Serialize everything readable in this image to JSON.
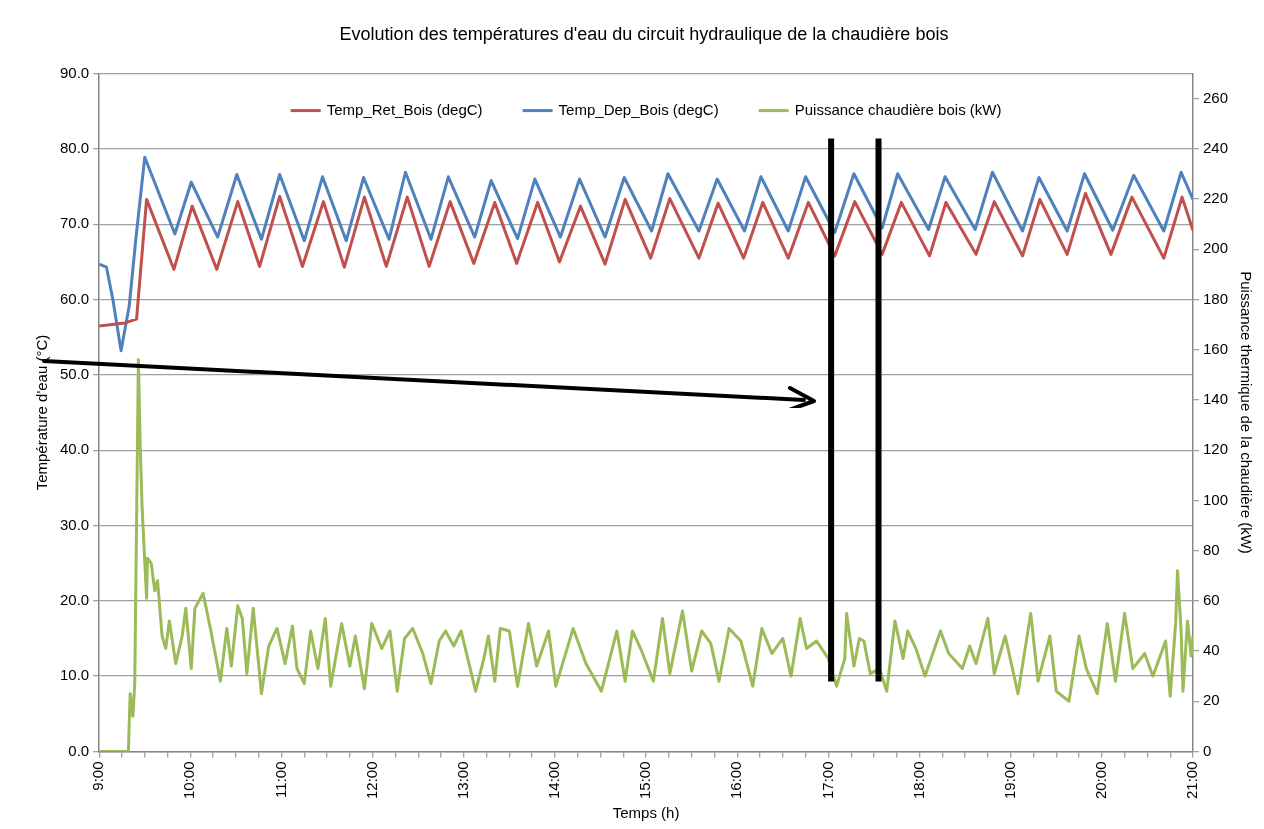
{
  "chart_data": {
    "type": "line",
    "title": "Evolution des températures d'eau du circuit hydraulique de la chaudière bois",
    "xlabel": "Temps (h)",
    "ylabel": "Température d'eau (°C)",
    "y2label": "Puissance thermique de la chaudière (kW)",
    "xlim": [
      9,
      21
    ],
    "xticks": [
      {
        "value": 9,
        "label": "9:00"
      },
      {
        "value": 9.25,
        "label": null
      },
      {
        "value": 9.5,
        "label": null
      },
      {
        "value": 9.75,
        "label": null
      },
      {
        "value": 10,
        "label": "10:00"
      },
      {
        "value": 10.25,
        "label": null
      },
      {
        "value": 10.5,
        "label": null
      },
      {
        "value": 10.75,
        "label": null
      },
      {
        "value": 11,
        "label": "11:00"
      },
      {
        "value": 11.25,
        "label": null
      },
      {
        "value": 11.5,
        "label": null
      },
      {
        "value": 11.75,
        "label": null
      },
      {
        "value": 12,
        "label": "12:00"
      },
      {
        "value": 12.25,
        "label": null
      },
      {
        "value": 12.5,
        "label": null
      },
      {
        "value": 12.75,
        "label": null
      },
      {
        "value": 13,
        "label": "13:00"
      },
      {
        "value": 13.25,
        "label": null
      },
      {
        "value": 13.5,
        "label": null
      },
      {
        "value": 13.75,
        "label": null
      },
      {
        "value": 14,
        "label": "14:00"
      },
      {
        "value": 14.25,
        "label": null
      },
      {
        "value": 14.5,
        "label": null
      },
      {
        "value": 14.75,
        "label": null
      },
      {
        "value": 15,
        "label": "15:00"
      },
      {
        "value": 15.25,
        "label": null
      },
      {
        "value": 15.5,
        "label": null
      },
      {
        "value": 15.75,
        "label": null
      },
      {
        "value": 16,
        "label": "16:00"
      },
      {
        "value": 16.25,
        "label": null
      },
      {
        "value": 16.5,
        "label": null
      },
      {
        "value": 16.75,
        "label": null
      },
      {
        "value": 17,
        "label": "17:00"
      },
      {
        "value": 17.25,
        "label": null
      },
      {
        "value": 17.5,
        "label": null
      },
      {
        "value": 17.75,
        "label": null
      },
      {
        "value": 18,
        "label": "18:00"
      },
      {
        "value": 18.25,
        "label": null
      },
      {
        "value": 18.5,
        "label": null
      },
      {
        "value": 18.75,
        "label": null
      },
      {
        "value": 19,
        "label": "19:00"
      },
      {
        "value": 19.25,
        "label": null
      },
      {
        "value": 19.5,
        "label": null
      },
      {
        "value": 19.75,
        "label": null
      },
      {
        "value": 20,
        "label": "20:00"
      },
      {
        "value": 20.25,
        "label": null
      },
      {
        "value": 20.5,
        "label": null
      },
      {
        "value": 20.75,
        "label": null
      },
      {
        "value": 21,
        "label": "21:00"
      }
    ],
    "ylim": [
      0,
      90
    ],
    "yticks": [
      {
        "value": 0,
        "label": "0.0"
      },
      {
        "value": 10,
        "label": "10.0"
      },
      {
        "value": 20,
        "label": "20.0"
      },
      {
        "value": 30,
        "label": "30.0"
      },
      {
        "value": 40,
        "label": "40.0"
      },
      {
        "value": 50,
        "label": "50.0"
      },
      {
        "value": 60,
        "label": "60.0"
      },
      {
        "value": 70,
        "label": "70.0"
      },
      {
        "value": 80,
        "label": "80.0"
      },
      {
        "value": 90,
        "label": "90.0"
      }
    ],
    "y2lim": [
      0,
      270
    ],
    "y2ticks": [
      0,
      20,
      40,
      60,
      80,
      100,
      120,
      140,
      160,
      180,
      200,
      220,
      240,
      260
    ],
    "grid": "y",
    "legend": "top",
    "marker": "none",
    "line_style": "solid",
    "ref_lines": [
      {
        "axis": "x",
        "value": 17.03,
        "label": null,
        "color": "#000000"
      },
      {
        "axis": "x",
        "value": 17.55,
        "label": null,
        "color": "#000000"
      }
    ],
    "series": [
      {
        "name": "Temp_Ret_Bois (degC)",
        "color": "#c0504d",
        "x": [
          9.0,
          9.28,
          9.41,
          9.52,
          9.82,
          10.02,
          10.29,
          10.52,
          10.76,
          10.98,
          11.23,
          11.46,
          11.69,
          11.91,
          12.15,
          12.38,
          12.62,
          12.85,
          13.11,
          13.34,
          13.58,
          13.81,
          14.05,
          14.28,
          14.55,
          14.77,
          15.05,
          15.26,
          15.58,
          15.79,
          16.07,
          16.28,
          16.56,
          16.78,
          17.07,
          17.29,
          17.59,
          17.8,
          18.11,
          18.29,
          18.62,
          18.82,
          19.13,
          19.32,
          19.62,
          19.82,
          20.1,
          20.33,
          20.68,
          20.88,
          21.0
        ],
        "values": [
          56.5,
          56.9,
          57.4,
          73.3,
          64.0,
          72.4,
          64.0,
          73.0,
          64.4,
          73.7,
          64.4,
          73.0,
          64.3,
          73.6,
          64.4,
          73.6,
          64.4,
          73.0,
          64.8,
          72.9,
          64.8,
          72.9,
          65.0,
          72.4,
          64.7,
          73.3,
          65.5,
          73.4,
          65.5,
          72.8,
          65.5,
          72.9,
          65.5,
          72.9,
          65.8,
          73.0,
          66.0,
          72.9,
          65.8,
          72.9,
          66.0,
          73.0,
          65.8,
          73.3,
          66.0,
          74.1,
          66.0,
          73.6,
          65.5,
          73.6,
          69.2
        ]
      },
      {
        "name": "Temp_Dep_Bois (degC)",
        "color": "#4f81bd",
        "x": [
          9.0,
          9.08,
          9.15,
          9.24,
          9.33,
          9.4,
          9.5,
          9.83,
          10.01,
          10.3,
          10.51,
          10.78,
          10.98,
          11.25,
          11.45,
          11.71,
          11.9,
          12.18,
          12.36,
          12.64,
          12.83,
          13.12,
          13.3,
          13.59,
          13.78,
          14.06,
          14.27,
          14.55,
          14.76,
          15.06,
          15.24,
          15.58,
          15.78,
          16.08,
          16.26,
          16.56,
          16.75,
          17.07,
          17.28,
          17.59,
          17.76,
          18.1,
          18.28,
          18.61,
          18.8,
          19.13,
          19.31,
          19.62,
          19.81,
          20.12,
          20.35,
          20.68,
          20.87,
          21.0
        ],
        "values": [
          64.7,
          64.3,
          60.0,
          53.2,
          59.2,
          67.8,
          78.9,
          68.7,
          75.6,
          68.3,
          76.6,
          68.0,
          76.6,
          67.8,
          76.3,
          67.8,
          76.2,
          68.0,
          76.9,
          68.0,
          76.3,
          68.3,
          75.8,
          68.1,
          76.0,
          68.3,
          76.0,
          68.3,
          76.2,
          69.1,
          76.7,
          69.1,
          76.0,
          69.1,
          76.3,
          69.1,
          76.3,
          68.9,
          76.7,
          69.5,
          76.7,
          69.3,
          76.3,
          69.3,
          76.9,
          69.1,
          76.2,
          69.1,
          76.7,
          69.2,
          76.5,
          69.1,
          76.9,
          73.3
        ]
      },
      {
        "name": "Puissance chaudière bois (kW)",
        "color": "#9bbb59",
        "axis": "y2",
        "x": [
          9.0,
          9.32,
          9.34,
          9.37,
          9.39,
          9.43,
          9.45,
          9.47,
          9.49,
          9.52,
          9.53,
          9.57,
          9.61,
          9.64,
          9.69,
          9.73,
          9.77,
          9.84,
          9.91,
          9.95,
          10.01,
          10.05,
          10.14,
          10.22,
          10.33,
          10.4,
          10.45,
          10.52,
          10.57,
          10.62,
          10.69,
          10.78,
          10.86,
          10.95,
          11.04,
          11.12,
          11.17,
          11.25,
          11.32,
          11.4,
          11.48,
          11.54,
          11.66,
          11.75,
          11.81,
          11.91,
          11.99,
          12.1,
          12.19,
          12.27,
          12.35,
          12.44,
          12.55,
          12.64,
          12.73,
          12.8,
          12.89,
          12.97,
          13.13,
          13.22,
          13.27,
          13.34,
          13.4,
          13.5,
          13.59,
          13.71,
          13.8,
          13.93,
          14.01,
          14.2,
          14.34,
          14.51,
          14.68,
          14.77,
          14.85,
          14.94,
          15.08,
          15.18,
          15.26,
          15.4,
          15.5,
          15.61,
          15.71,
          15.8,
          15.91,
          16.04,
          16.17,
          16.27,
          16.38,
          16.5,
          16.59,
          16.69,
          16.76,
          16.87,
          17.0,
          17.09,
          17.18,
          17.2,
          17.28,
          17.34,
          17.39,
          17.46,
          17.56,
          17.64,
          17.73,
          17.82,
          17.87,
          17.96,
          18.06,
          18.23,
          18.32,
          18.47,
          18.55,
          18.62,
          18.75,
          18.82,
          18.94,
          19.08,
          19.22,
          19.3,
          19.43,
          19.5,
          19.64,
          19.75,
          19.83,
          19.95,
          20.06,
          20.15,
          20.25,
          20.34,
          20.47,
          20.56,
          20.7,
          20.75,
          20.81,
          20.83,
          20.87,
          20.89,
          20.94,
          20.98,
          21.0
        ],
        "values": [
          0,
          0,
          23,
          14,
          27,
          156,
          122,
          98,
          83,
          61,
          77,
          75,
          64,
          68,
          46,
          41,
          52,
          35,
          46,
          57,
          33,
          57,
          63,
          49,
          28,
          49,
          34,
          58,
          53,
          31,
          57,
          23,
          42,
          49,
          35,
          50,
          33,
          27,
          48,
          33,
          53,
          26,
          51,
          34,
          46,
          25,
          51,
          41,
          48,
          24,
          45,
          49,
          39,
          27,
          44,
          48,
          42,
          48,
          24,
          37,
          46,
          28,
          49,
          48,
          26,
          51,
          34,
          48,
          26,
          49,
          35,
          24,
          48,
          28,
          48,
          41,
          28,
          53,
          31,
          56,
          32,
          48,
          43,
          28,
          49,
          44,
          26,
          49,
          39,
          45,
          30,
          53,
          41,
          44,
          37,
          26,
          37,
          55,
          34,
          45,
          44,
          31,
          33,
          24,
          52,
          37,
          48,
          41,
          30,
          48,
          39,
          33,
          42,
          35,
          53,
          31,
          46,
          23,
          55,
          28,
          46,
          24,
          20,
          46,
          33,
          23,
          51,
          28,
          55,
          33,
          39,
          30,
          44,
          22,
          51,
          72,
          48,
          24,
          52,
          38,
          46
        ]
      }
    ]
  }
}
